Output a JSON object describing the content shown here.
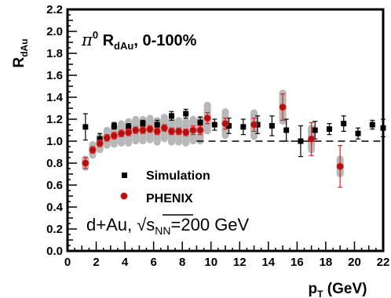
{
  "chart_data": {
    "type": "scatter",
    "title": "π⁰ R_dAu, 0-100%",
    "title_parts": {
      "symbol": "π",
      "sup": "0",
      "main": " R",
      "sub": "dAu",
      "suffix": ", 0-100%"
    },
    "annotation": {
      "system": "d+Au, ",
      "sqrt": "√",
      "s": "s",
      "sub": "NN",
      "energy": "=200 GeV"
    },
    "xlabel": {
      "p": "p",
      "sub": "T",
      "unit": " (GeV)"
    },
    "ylabel": {
      "R": "R",
      "sub": "dAu"
    },
    "xlim": [
      0,
      22
    ],
    "ylim": [
      0,
      2.2
    ],
    "x_ticks": [
      0,
      2,
      4,
      6,
      8,
      10,
      12,
      14,
      16,
      18,
      20,
      22
    ],
    "y_ticks": [
      0.0,
      0.2,
      0.4,
      0.6,
      0.8,
      1.0,
      1.2,
      1.4,
      1.6,
      1.8,
      2.0,
      2.2
    ],
    "y_tick_labels": [
      "0.0",
      "0.2",
      "0.4",
      "0.6",
      "0.8",
      "1.0",
      "1.2",
      "1.4",
      "1.6",
      "1.8",
      "2.0",
      "2.2"
    ],
    "x_tick_labels": [
      "0",
      "2",
      "4",
      "6",
      "8",
      "10",
      "12",
      "14",
      "16",
      "18",
      "20",
      "22"
    ],
    "reference_line": 1.0,
    "legend": {
      "placement": "lower-left",
      "entries": [
        "Simulation",
        "PHENIX"
      ]
    },
    "colors": {
      "simulation": "#000000",
      "phenix": "#b01010",
      "phenix_outline": "#e02020",
      "syst_band": "#b8b8b8"
    },
    "series": [
      {
        "name": "Simulation",
        "marker": "square",
        "points": [
          {
            "x": 1.25,
            "y": 1.13,
            "err": 0.12
          },
          {
            "x": 2.25,
            "y": 1.02,
            "err": 0.05
          },
          {
            "x": 3.25,
            "y": 1.14,
            "err": 0.03
          },
          {
            "x": 4.25,
            "y": 1.13,
            "err": 0.03
          },
          {
            "x": 5.25,
            "y": 1.16,
            "err": 0.03
          },
          {
            "x": 6.25,
            "y": 1.15,
            "err": 0.04
          },
          {
            "x": 7.25,
            "y": 1.23,
            "err": 0.04
          },
          {
            "x": 8.25,
            "y": 1.25,
            "err": 0.04
          },
          {
            "x": 9.25,
            "y": 1.17,
            "err": 0.05
          },
          {
            "x": 10.25,
            "y": 1.15,
            "err": 0.05
          },
          {
            "x": 11.25,
            "y": 1.14,
            "err": 0.07
          },
          {
            "x": 12.25,
            "y": 1.13,
            "err": 0.07
          },
          {
            "x": 13.25,
            "y": 1.15,
            "err": 0.08
          },
          {
            "x": 14.25,
            "y": 1.14,
            "err": 0.09
          },
          {
            "x": 15.25,
            "y": 1.1,
            "err": 0.1
          },
          {
            "x": 16.25,
            "y": 1.0,
            "err": 0.14
          },
          {
            "x": 17.25,
            "y": 1.1,
            "err": 0.08
          },
          {
            "x": 18.25,
            "y": 1.11,
            "err": 0.05
          },
          {
            "x": 19.25,
            "y": 1.16,
            "err": 0.07
          },
          {
            "x": 20.25,
            "y": 1.07,
            "err": 0.05
          },
          {
            "x": 21.25,
            "y": 1.15,
            "err": 0.04
          },
          {
            "x": 22.0,
            "y": 1.12,
            "err": 0.08
          }
        ]
      },
      {
        "name": "PHENIX",
        "marker": "circle",
        "points": [
          {
            "x": 1.25,
            "y": 0.8,
            "err": 0.05,
            "syst": 0.07
          },
          {
            "x": 1.75,
            "y": 0.92,
            "err": 0.03,
            "syst": 0.08
          },
          {
            "x": 2.25,
            "y": 0.98,
            "err": 0.03,
            "syst": 0.09
          },
          {
            "x": 2.75,
            "y": 1.03,
            "err": 0.03,
            "syst": 0.1
          },
          {
            "x": 3.25,
            "y": 1.05,
            "err": 0.03,
            "syst": 0.11
          },
          {
            "x": 3.75,
            "y": 1.07,
            "err": 0.03,
            "syst": 0.12
          },
          {
            "x": 4.25,
            "y": 1.08,
            "err": 0.03,
            "syst": 0.13
          },
          {
            "x": 4.75,
            "y": 1.1,
            "err": 0.03,
            "syst": 0.13
          },
          {
            "x": 5.25,
            "y": 1.1,
            "err": 0.03,
            "syst": 0.13
          },
          {
            "x": 5.75,
            "y": 1.11,
            "err": 0.03,
            "syst": 0.13
          },
          {
            "x": 6.25,
            "y": 1.09,
            "err": 0.03,
            "syst": 0.13
          },
          {
            "x": 6.75,
            "y": 1.12,
            "err": 0.03,
            "syst": 0.13
          },
          {
            "x": 7.25,
            "y": 1.09,
            "err": 0.03,
            "syst": 0.13
          },
          {
            "x": 7.75,
            "y": 1.09,
            "err": 0.03,
            "syst": 0.13
          },
          {
            "x": 8.25,
            "y": 1.08,
            "err": 0.03,
            "syst": 0.13
          },
          {
            "x": 8.75,
            "y": 1.1,
            "err": 0.04,
            "syst": 0.13
          },
          {
            "x": 9.25,
            "y": 1.1,
            "err": 0.04,
            "syst": 0.13
          },
          {
            "x": 9.75,
            "y": 1.21,
            "err": 0.05,
            "syst": 0.15
          },
          {
            "x": 11.0,
            "y": 1.16,
            "err": 0.05,
            "syst": 0.14
          },
          {
            "x": 13.0,
            "y": 1.15,
            "err": 0.06,
            "syst": 0.14
          },
          {
            "x": 15.0,
            "y": 1.31,
            "err": 0.12,
            "syst": 0.16
          },
          {
            "x": 17.0,
            "y": 1.02,
            "err": 0.15,
            "syst": 0.13
          },
          {
            "x": 19.0,
            "y": 0.77,
            "err": 0.19,
            "syst": 0.1
          }
        ]
      }
    ]
  }
}
